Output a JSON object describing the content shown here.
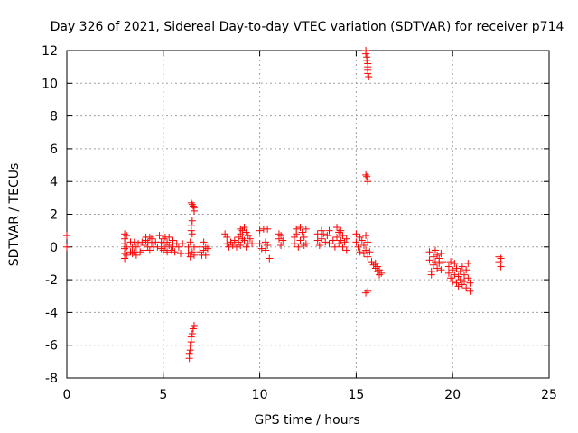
{
  "chart_data": {
    "type": "scatter",
    "title": "Day 326 of 2021, Sidereal Day-to-day VTEC variation (SDTVAR) for receiver p714",
    "xlabel": "GPS time / hours",
    "ylabel": "SDTVAR / TECUs",
    "xlim": [
      0,
      25
    ],
    "ylim": [
      -8,
      12
    ],
    "xticks": [
      0,
      5,
      10,
      15,
      20,
      25
    ],
    "yticks": [
      -8,
      -6,
      -4,
      -2,
      0,
      2,
      4,
      6,
      8,
      10,
      12
    ],
    "grid": true,
    "marker": "plus",
    "color": "#ff0000",
    "series": [
      {
        "name": "SDTVAR",
        "points": [
          [
            0.0,
            0.7
          ],
          [
            0.0,
            0.0
          ],
          [
            3.0,
            0.8
          ],
          [
            3.0,
            0.5
          ],
          [
            3.0,
            0.2
          ],
          [
            3.0,
            -0.1
          ],
          [
            3.0,
            -0.4
          ],
          [
            3.0,
            -0.7
          ],
          [
            3.1,
            0.7
          ],
          [
            3.1,
            0.0
          ],
          [
            3.1,
            -0.5
          ],
          [
            3.3,
            0.3
          ],
          [
            3.3,
            -0.3
          ],
          [
            3.4,
            0.0
          ],
          [
            3.4,
            -0.4
          ],
          [
            3.5,
            0.3
          ],
          [
            3.5,
            -0.3
          ],
          [
            3.6,
            0.0
          ],
          [
            3.6,
            -0.5
          ],
          [
            3.7,
            0.2
          ],
          [
            3.8,
            -0.3
          ],
          [
            3.9,
            0.3
          ],
          [
            4.0,
            0.1
          ],
          [
            4.0,
            -0.2
          ],
          [
            4.1,
            0.6
          ],
          [
            4.1,
            0.4
          ],
          [
            4.2,
            0.3
          ],
          [
            4.2,
            0.0
          ],
          [
            4.3,
            0.6
          ],
          [
            4.3,
            -0.2
          ],
          [
            4.4,
            0.2
          ],
          [
            4.4,
            0.5
          ],
          [
            4.5,
            0.0
          ],
          [
            4.6,
            0.3
          ],
          [
            4.7,
            0.0
          ],
          [
            4.8,
            0.7
          ],
          [
            4.9,
            0.3
          ],
          [
            4.9,
            -0.1
          ],
          [
            5.0,
            0.5
          ],
          [
            5.0,
            0.2
          ],
          [
            5.0,
            -0.2
          ],
          [
            5.1,
            0.6
          ],
          [
            5.1,
            0.0
          ],
          [
            5.2,
            0.3
          ],
          [
            5.2,
            -0.3
          ],
          [
            5.3,
            0.6
          ],
          [
            5.3,
            0.1
          ],
          [
            5.4,
            -0.2
          ],
          [
            5.5,
            0.4
          ],
          [
            5.5,
            0.0
          ],
          [
            5.6,
            -0.3
          ],
          [
            5.7,
            0.2
          ],
          [
            5.8,
            0.0
          ],
          [
            5.9,
            -0.4
          ],
          [
            6.0,
            0.2
          ],
          [
            6.3,
            0.0
          ],
          [
            6.3,
            -0.4
          ],
          [
            6.4,
            0.3
          ],
          [
            6.4,
            -0.6
          ],
          [
            6.45,
            1.0
          ],
          [
            6.45,
            1.3
          ],
          [
            6.5,
            1.6
          ],
          [
            6.5,
            0.8
          ],
          [
            6.45,
            2.7
          ],
          [
            6.5,
            2.6
          ],
          [
            6.55,
            2.5
          ],
          [
            6.6,
            2.4
          ],
          [
            6.6,
            2.2
          ],
          [
            6.5,
            -0.3
          ],
          [
            6.6,
            0.0
          ],
          [
            6.6,
            -0.5
          ],
          [
            6.35,
            -6.8
          ],
          [
            6.35,
            -6.5
          ],
          [
            6.4,
            -6.3
          ],
          [
            6.4,
            -6.0
          ],
          [
            6.45,
            -5.8
          ],
          [
            6.45,
            -5.5
          ],
          [
            6.5,
            -5.3
          ],
          [
            6.55,
            -5.0
          ],
          [
            6.6,
            -4.8
          ],
          [
            6.9,
            0.0
          ],
          [
            6.9,
            -0.3
          ],
          [
            7.0,
            -0.5
          ],
          [
            7.1,
            0.3
          ],
          [
            7.1,
            -0.2
          ],
          [
            7.2,
            0.0
          ],
          [
            7.2,
            -0.5
          ],
          [
            7.3,
            -0.1
          ],
          [
            8.2,
            0.8
          ],
          [
            8.3,
            0.6
          ],
          [
            8.3,
            0.2
          ],
          [
            8.4,
            0.0
          ],
          [
            8.5,
            0.3
          ],
          [
            8.6,
            0.1
          ],
          [
            8.7,
            0.4
          ],
          [
            8.8,
            0.0
          ],
          [
            8.9,
            0.6
          ],
          [
            8.9,
            0.3
          ],
          [
            9.0,
            1.1
          ],
          [
            9.0,
            0.8
          ],
          [
            9.0,
            0.1
          ],
          [
            9.1,
            1.0
          ],
          [
            9.1,
            0.5
          ],
          [
            9.2,
            1.2
          ],
          [
            9.2,
            0.4
          ],
          [
            9.3,
            0.9
          ],
          [
            9.3,
            0.0
          ],
          [
            9.4,
            0.7
          ],
          [
            9.4,
            0.2
          ],
          [
            9.5,
            0.5
          ],
          [
            9.6,
            0.2
          ],
          [
            10.0,
            1.0
          ],
          [
            10.0,
            0.2
          ],
          [
            10.1,
            -0.1
          ],
          [
            10.2,
            1.1
          ],
          [
            10.3,
            0.3
          ],
          [
            10.3,
            -0.2
          ],
          [
            10.4,
            1.1
          ],
          [
            10.4,
            0.1
          ],
          [
            10.5,
            -0.7
          ],
          [
            11.0,
            0.8
          ],
          [
            11.0,
            0.5
          ],
          [
            11.1,
            0.7
          ],
          [
            11.1,
            0.1
          ],
          [
            11.2,
            0.4
          ],
          [
            11.8,
            0.6
          ],
          [
            11.8,
            0.2
          ],
          [
            11.9,
            1.1
          ],
          [
            11.9,
            0.8
          ],
          [
            12.0,
            0.0
          ],
          [
            12.1,
            0.4
          ],
          [
            12.1,
            1.2
          ],
          [
            12.2,
            0.9
          ],
          [
            12.3,
            0.6
          ],
          [
            12.3,
            0.1
          ],
          [
            12.4,
            0.2
          ],
          [
            12.4,
            1.1
          ],
          [
            13.0,
            0.8
          ],
          [
            13.0,
            0.4
          ],
          [
            13.1,
            0.1
          ],
          [
            13.2,
            1.0
          ],
          [
            13.2,
            0.5
          ],
          [
            13.3,
            0.8
          ],
          [
            13.4,
            0.3
          ],
          [
            13.5,
            0.7
          ],
          [
            13.6,
            1.0
          ],
          [
            13.6,
            0.2
          ],
          [
            13.8,
            0.4
          ],
          [
            13.9,
            0.0
          ],
          [
            14.0,
            1.2
          ],
          [
            14.0,
            0.6
          ],
          [
            14.1,
            0.9
          ],
          [
            14.1,
            0.2
          ],
          [
            14.2,
            1.0
          ],
          [
            14.2,
            0.4
          ],
          [
            14.3,
            0.7
          ],
          [
            14.3,
            0.0
          ],
          [
            14.4,
            0.3
          ],
          [
            14.5,
            -0.2
          ],
          [
            14.5,
            0.5
          ],
          [
            15.0,
            0.8
          ],
          [
            15.0,
            0.3
          ],
          [
            15.1,
            0.0
          ],
          [
            15.2,
            0.6
          ],
          [
            15.2,
            -0.3
          ],
          [
            15.3,
            0.4
          ],
          [
            15.4,
            0.1
          ],
          [
            15.4,
            -0.4
          ],
          [
            15.5,
            0.7
          ],
          [
            15.5,
            -0.2
          ],
          [
            15.6,
            0.3
          ],
          [
            15.6,
            -0.6
          ],
          [
            15.7,
            -0.3
          ],
          [
            15.8,
            -0.9
          ],
          [
            15.5,
            12.0
          ],
          [
            15.5,
            11.8
          ],
          [
            15.55,
            11.6
          ],
          [
            15.55,
            11.4
          ],
          [
            15.6,
            11.2
          ],
          [
            15.6,
            11.0
          ],
          [
            15.6,
            10.8
          ],
          [
            15.6,
            10.6
          ],
          [
            15.65,
            10.4
          ],
          [
            15.5,
            4.4
          ],
          [
            15.55,
            4.3
          ],
          [
            15.6,
            4.1
          ],
          [
            15.6,
            4.0
          ],
          [
            15.5,
            -2.8
          ],
          [
            15.6,
            -2.7
          ],
          [
            15.9,
            -1.1
          ],
          [
            16.0,
            -1.3
          ],
          [
            16.0,
            -1.0
          ],
          [
            16.1,
            -1.5
          ],
          [
            16.1,
            -1.2
          ],
          [
            16.2,
            -1.7
          ],
          [
            16.2,
            -1.4
          ],
          [
            16.3,
            -1.6
          ],
          [
            18.8,
            -0.3
          ],
          [
            18.8,
            -0.8
          ],
          [
            18.9,
            -1.5
          ],
          [
            18.9,
            -1.7
          ],
          [
            19.0,
            -0.6
          ],
          [
            19.0,
            -1.1
          ],
          [
            19.1,
            -0.2
          ],
          [
            19.1,
            -0.9
          ],
          [
            19.2,
            -1.3
          ],
          [
            19.2,
            -0.5
          ],
          [
            19.3,
            -0.7
          ],
          [
            19.3,
            -1.0
          ],
          [
            19.4,
            -0.4
          ],
          [
            19.4,
            -1.4
          ],
          [
            19.5,
            -0.9
          ],
          [
            19.8,
            -1.2
          ],
          [
            19.8,
            -1.6
          ],
          [
            19.9,
            -0.9
          ],
          [
            19.9,
            -1.9
          ],
          [
            20.0,
            -1.4
          ],
          [
            20.0,
            -2.1
          ],
          [
            20.1,
            -1.0
          ],
          [
            20.1,
            -1.7
          ],
          [
            20.2,
            -2.2
          ],
          [
            20.2,
            -1.3
          ],
          [
            20.3,
            -1.8
          ],
          [
            20.3,
            -2.4
          ],
          [
            20.4,
            -1.5
          ],
          [
            20.4,
            -2.0
          ],
          [
            20.5,
            -1.2
          ],
          [
            20.5,
            -2.3
          ],
          [
            20.6,
            -1.7
          ],
          [
            20.6,
            -2.1
          ],
          [
            20.7,
            -1.4
          ],
          [
            20.7,
            -2.5
          ],
          [
            20.8,
            -1.0
          ],
          [
            20.8,
            -1.9
          ],
          [
            20.9,
            -2.7
          ],
          [
            20.9,
            -2.2
          ],
          [
            22.4,
            -0.6
          ],
          [
            22.4,
            -0.9
          ],
          [
            22.5,
            -0.7
          ],
          [
            22.5,
            -1.2
          ]
        ]
      }
    ]
  }
}
